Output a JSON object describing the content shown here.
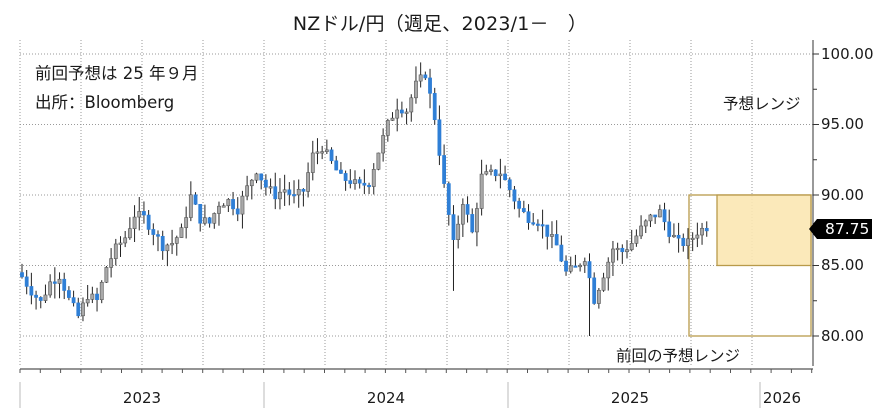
{
  "header": {
    "title": "NZドル/円（週足、2023/1－　）"
  },
  "annotations": {
    "previous_forecast": "前回予想は 25 年９月",
    "source": "出所：Bloomberg",
    "forecast_range_label": "予想レンジ",
    "previous_range_label": "前回の予想レンジ"
  },
  "last_price_tag": "87.75",
  "colors": {
    "down_candle": "#2f7fd6",
    "up_candle": "#a9a9a9",
    "wick": "#222222",
    "forecast_fill": "#fbe7b3",
    "forecast_border": "#b89a4a",
    "grid": "#9a9a9a",
    "price_tag_bg": "#000000"
  },
  "chart_data": {
    "type": "candlestick",
    "title": "NZドル/円（週足、2023/1－　）",
    "xlabel": "",
    "ylabel": "",
    "ylim": [
      78.5,
      101.5
    ],
    "y_ticks": [
      "100.00",
      "95.00",
      "90.00",
      "85.00",
      "80.00"
    ],
    "x_ticks": [
      "2023",
      "2024",
      "2025",
      "2026"
    ],
    "grid": true,
    "legend_position": "none",
    "last_value": 87.75,
    "forecast_range": {
      "label": "予想レンジ",
      "low": 85.0,
      "high": 90.0,
      "period": "2025/10 - 2026/1"
    },
    "previous_forecast_range": {
      "label": "前回の予想レンジ",
      "low": 80.0,
      "high": 90.0,
      "period": "2025/6 - 2026/1"
    },
    "weekly_close_path": [
      {
        "week": 0,
        "close": 84.2
      },
      {
        "week": 2,
        "close": 83.2
      },
      {
        "week": 4,
        "close": 82.4
      },
      {
        "week": 6,
        "close": 83.8
      },
      {
        "week": 8,
        "close": 84.3
      },
      {
        "week": 10,
        "close": 82.6
      },
      {
        "week": 12,
        "close": 81.4
      },
      {
        "week": 14,
        "close": 82.9
      },
      {
        "week": 16,
        "close": 82.5
      },
      {
        "week": 18,
        "close": 84.9
      },
      {
        "week": 20,
        "close": 86.2
      },
      {
        "week": 22,
        "close": 87.0
      },
      {
        "week": 24,
        "close": 88.6
      },
      {
        "week": 26,
        "close": 88.4
      },
      {
        "week": 28,
        "close": 87.4
      },
      {
        "week": 30,
        "close": 86.4
      },
      {
        "week": 32,
        "close": 86.6
      },
      {
        "week": 34,
        "close": 87.4
      },
      {
        "week": 36,
        "close": 89.9
      },
      {
        "week": 38,
        "close": 88.3
      },
      {
        "week": 40,
        "close": 88.0
      },
      {
        "week": 42,
        "close": 89.4
      },
      {
        "week": 44,
        "close": 89.6
      },
      {
        "week": 46,
        "close": 89.0
      },
      {
        "week": 48,
        "close": 90.5
      },
      {
        "week": 50,
        "close": 91.8
      },
      {
        "week": 52,
        "close": 90.6
      },
      {
        "week": 54,
        "close": 90.0
      },
      {
        "week": 56,
        "close": 90.4
      },
      {
        "week": 58,
        "close": 89.8
      },
      {
        "week": 60,
        "close": 90.3
      },
      {
        "week": 62,
        "close": 92.8
      },
      {
        "week": 64,
        "close": 93.4
      },
      {
        "week": 66,
        "close": 92.3
      },
      {
        "week": 68,
        "close": 91.2
      },
      {
        "week": 70,
        "close": 91.0
      },
      {
        "week": 72,
        "close": 90.6
      },
      {
        "week": 74,
        "close": 90.9
      },
      {
        "week": 76,
        "close": 93.1
      },
      {
        "week": 78,
        "close": 95.0
      },
      {
        "week": 80,
        "close": 96.3
      },
      {
        "week": 82,
        "close": 96.0
      },
      {
        "week": 84,
        "close": 97.8
      },
      {
        "week": 86,
        "close": 98.6
      },
      {
        "week": 88,
        "close": 95.5
      },
      {
        "week": 90,
        "close": 90.6
      },
      {
        "week": 92,
        "close": 86.5
      },
      {
        "week": 94,
        "close": 89.6
      },
      {
        "week": 96,
        "close": 87.3
      },
      {
        "week": 98,
        "close": 91.3
      },
      {
        "week": 100,
        "close": 91.5
      },
      {
        "week": 102,
        "close": 91.6
      },
      {
        "week": 104,
        "close": 90.4
      },
      {
        "week": 106,
        "close": 89.0
      },
      {
        "week": 108,
        "close": 88.4
      },
      {
        "week": 110,
        "close": 88.2
      },
      {
        "week": 112,
        "close": 87.3
      },
      {
        "week": 114,
        "close": 86.4
      },
      {
        "week": 116,
        "close": 84.5
      },
      {
        "week": 118,
        "close": 84.8
      },
      {
        "week": 120,
        "close": 85.6
      },
      {
        "week": 122,
        "close": 82.6
      },
      {
        "week": 124,
        "close": 84.4
      },
      {
        "week": 126,
        "close": 86.2
      },
      {
        "week": 128,
        "close": 86.0
      },
      {
        "week": 130,
        "close": 86.6
      },
      {
        "week": 132,
        "close": 87.6
      },
      {
        "week": 134,
        "close": 88.4
      },
      {
        "week": 136,
        "close": 88.8
      },
      {
        "week": 138,
        "close": 87.4
      },
      {
        "week": 140,
        "close": 86.6
      },
      {
        "week": 142,
        "close": 86.6
      },
      {
        "week": 144,
        "close": 87.4
      },
      {
        "week": 146,
        "close": 87.75
      }
    ]
  }
}
